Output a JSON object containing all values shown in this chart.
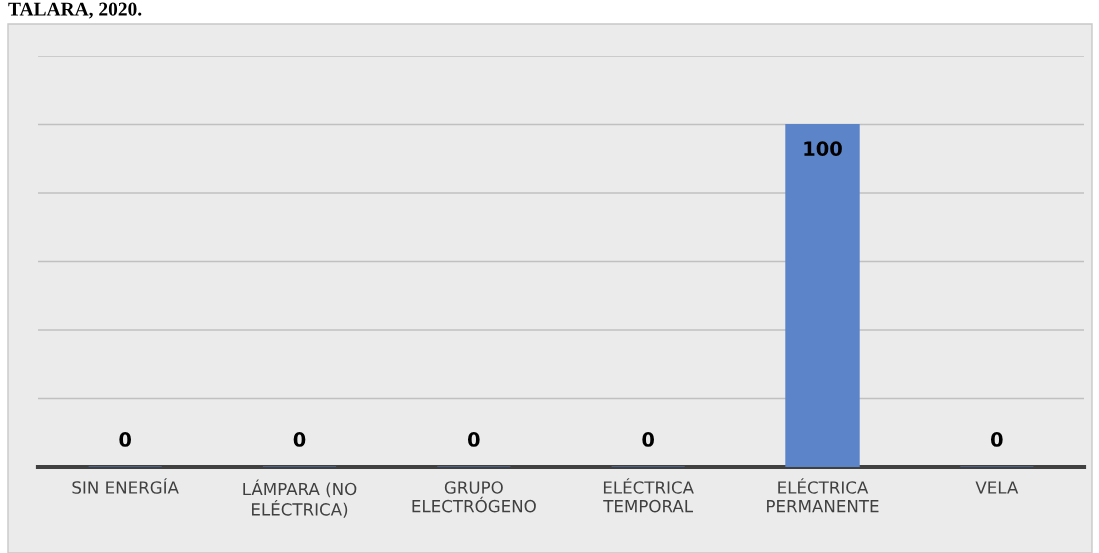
{
  "chart_data": {
    "type": "bar",
    "title": "TALARA, 2020.",
    "categories": [
      "SIN ENERGÍA",
      "LÁMPARA (NO ELÉCTRICA)",
      "GRUPO ELECTRÓGENO",
      "ELÉCTRICA TEMPORAL",
      "ELÉCTRICA PERMANENTE",
      "VELA"
    ],
    "values": [
      0,
      0,
      0,
      0,
      100,
      0
    ],
    "color": "#5b84c9",
    "ylim": [
      0,
      120
    ],
    "yticks": [
      {
        "value": 0,
        "label": null
      },
      {
        "value": 20,
        "label": null
      },
      {
        "value": 40,
        "label": null
      },
      {
        "value": 60,
        "label": null
      },
      {
        "value": 80,
        "label": null
      },
      {
        "value": 100,
        "label": null
      },
      {
        "value": 120,
        "label": null
      }
    ],
    "grid": "y",
    "tick_labels": "x",
    "data_labels": true
  }
}
